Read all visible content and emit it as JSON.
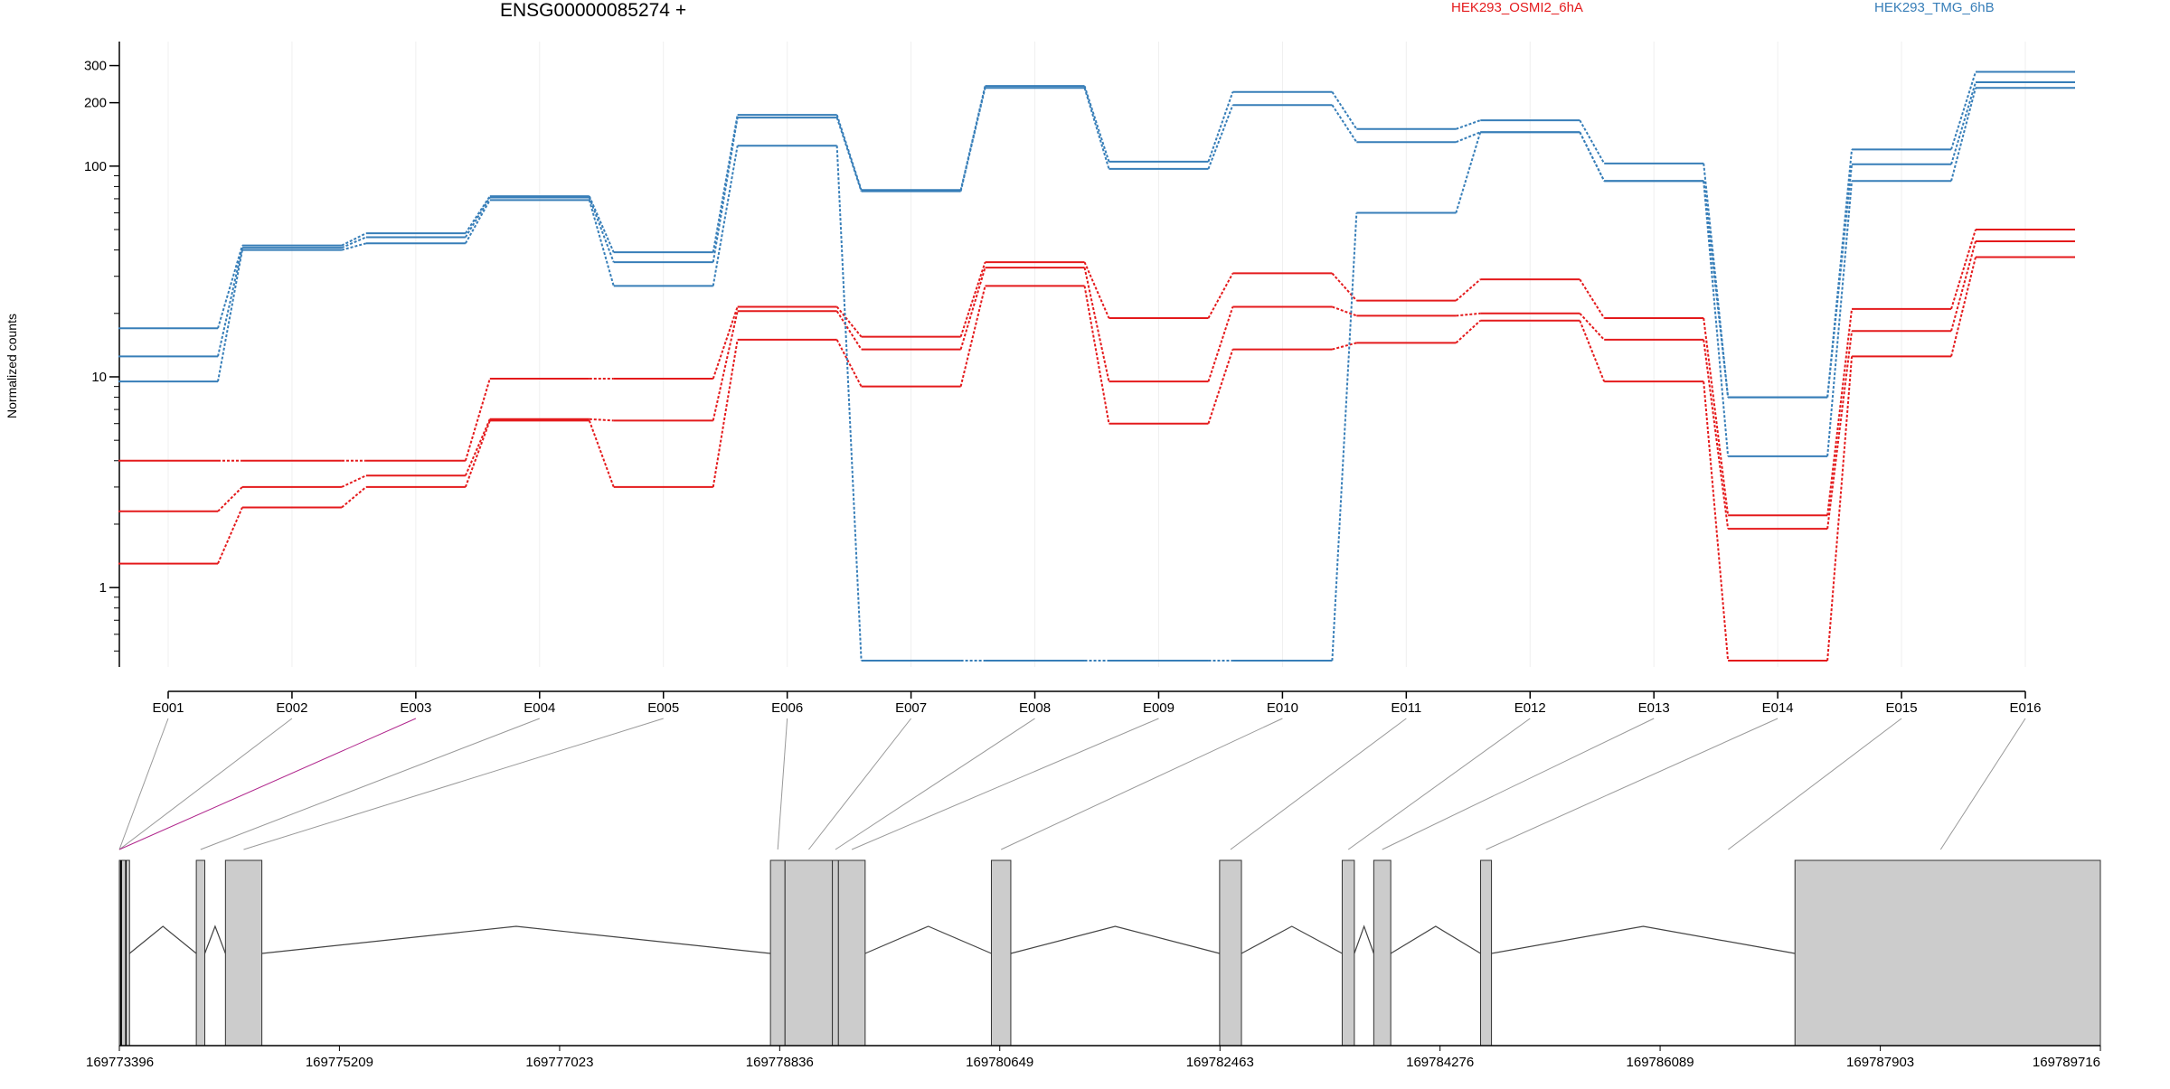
{
  "chart_data": [
    {
      "type": "line",
      "title": "ENSG00000085274 +",
      "ylabel": "Normalized counts",
      "yscale": "log",
      "ylim": [
        0.42,
        390
      ],
      "yticks": [
        "1",
        "10",
        "100",
        "200",
        "300"
      ],
      "grid": "vertical",
      "legend_placement": "top-right",
      "categories": [
        "E001",
        "E002",
        "E003",
        "E004",
        "E005",
        "E006",
        "E007",
        "E008",
        "E009",
        "E010",
        "E011",
        "E012",
        "E013",
        "E014",
        "E015",
        "E016"
      ],
      "series": [
        {
          "name": "HEK293_OSMI2_6hA",
          "color": "#e41a1c",
          "values": [
            4.0,
            4.0,
            4.0,
            9.8,
            9.8,
            21.5,
            15.5,
            35,
            19,
            31,
            23,
            29,
            19,
            2.2,
            21,
            50
          ]
        },
        {
          "color": "#e41a1c",
          "values": [
            2.3,
            3.0,
            3.4,
            6.3,
            6.2,
            20.5,
            13.5,
            33,
            9.5,
            21.5,
            19.5,
            20,
            15,
            1.9,
            16.5,
            44
          ]
        },
        {
          "color": "#e41a1c",
          "values": [
            1.3,
            2.4,
            3.0,
            6.2,
            3.0,
            15,
            9.0,
            27,
            6.0,
            13.5,
            14.5,
            18.5,
            9.5,
            0.45,
            12.5,
            37
          ]
        },
        {
          "name": "HEK293_TMG_6hB",
          "color": "#377eb8",
          "values": [
            17,
            42,
            48,
            72,
            39,
            175,
            77,
            240,
            105,
            225,
            150,
            165,
            103,
            8.0,
            120,
            280
          ]
        },
        {
          "color": "#377eb8",
          "values": [
            12.5,
            41,
            46,
            71,
            35,
            170,
            76,
            235,
            97,
            195,
            130,
            145,
            85,
            8.0,
            102,
            250
          ]
        },
        {
          "color": "#377eb8",
          "values": [
            9.5,
            40,
            43,
            69,
            27,
            125,
            0.45,
            0.45,
            0.45,
            0.45,
            60,
            145,
            85,
            4.2,
            85,
            235
          ]
        }
      ]
    },
    {
      "type": "gene_model",
      "xlim": [
        169773396,
        169789716
      ],
      "xticks": [
        "169773396",
        "169775209",
        "169777023",
        "169778836",
        "169780649",
        "169782463",
        "169784276",
        "169786089",
        "169787903",
        "169789716"
      ],
      "exons": [
        [
          169773396,
          169773480
        ],
        [
          169774030,
          169774100
        ],
        [
          169774270,
          169774570
        ],
        [
          169778760,
          169778880
        ],
        [
          169778880,
          169779270
        ],
        [
          169779270,
          169779320
        ],
        [
          169779320,
          169779540
        ],
        [
          169780580,
          169780740
        ],
        [
          169782460,
          169782640
        ],
        [
          169783470,
          169783570
        ],
        [
          169783730,
          169783870
        ],
        [
          169784610,
          169784700
        ],
        [
          169787200,
          169789716
        ]
      ],
      "exon_links": [
        {
          "exon": "E001",
          "genomic": 169773396
        },
        {
          "exon": "E002",
          "genomic": 169773396
        },
        {
          "exon": "E003",
          "genomic": 169773396,
          "highlight": "#b0268c"
        },
        {
          "exon": "E004",
          "genomic": 169774065
        },
        {
          "exon": "E005",
          "genomic": 169774420
        },
        {
          "exon": "E006",
          "genomic": 169778820
        },
        {
          "exon": "E007",
          "genomic": 169779075
        },
        {
          "exon": "E008",
          "genomic": 169779295
        },
        {
          "exon": "E009",
          "genomic": 169779430
        },
        {
          "exon": "E010",
          "genomic": 169780660
        },
        {
          "exon": "E011",
          "genomic": 169782550
        },
        {
          "exon": "E012",
          "genomic": 169783520
        },
        {
          "exon": "E013",
          "genomic": 169783800
        },
        {
          "exon": "E014",
          "genomic": 169784655
        },
        {
          "exon": "E015",
          "genomic": 169786650
        },
        {
          "exon": "E016",
          "genomic": 169788400
        }
      ]
    }
  ]
}
